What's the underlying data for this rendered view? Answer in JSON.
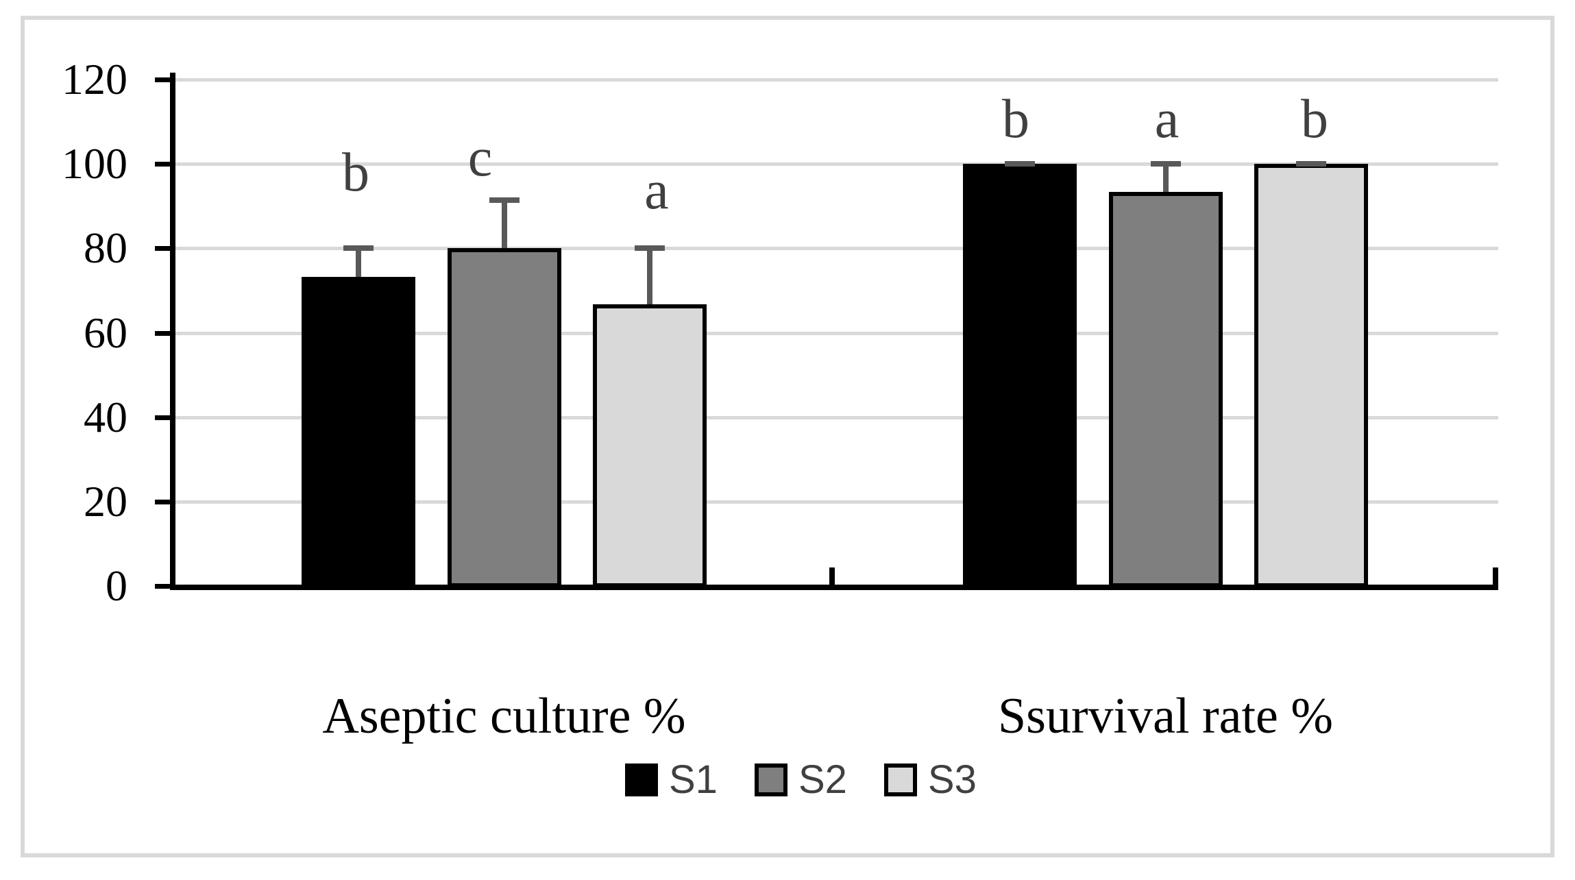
{
  "chart_data": {
    "type": "bar",
    "title": "",
    "categories": [
      "Aseptic culture %",
      "Ssurvival rate %"
    ],
    "series": [
      {
        "name": "S1",
        "color": "#000000",
        "values": [
          73.3,
          100
        ],
        "errors_plus": [
          6.7,
          0
        ],
        "sig_letters": [
          "b",
          "b"
        ]
      },
      {
        "name": "S2",
        "color": "#7f7f7f",
        "values": [
          80,
          93.3
        ],
        "errors_plus": [
          11.5,
          6.7
        ],
        "sig_letters": [
          "c",
          "a"
        ]
      },
      {
        "name": "S3",
        "color": "#d9d9d9",
        "values": [
          66.7,
          100
        ],
        "errors_plus": [
          13.3,
          0
        ],
        "sig_letters": [
          "a",
          "b"
        ]
      }
    ],
    "ylim": [
      0,
      120
    ],
    "ytick_interval": 20,
    "yticks": [
      0,
      20,
      40,
      60,
      80,
      100,
      120
    ],
    "grid": true,
    "legend_position": "bottom",
    "legend": [
      "S1",
      "S2",
      "S3"
    ]
  },
  "colors": {
    "background": "#ffffff",
    "frame": "#d9d9d9",
    "gridline": "#d9d9d9",
    "axis": "#000000",
    "error_bar": "#595959",
    "sig_letter": "#404040",
    "legend_text": "#404040"
  }
}
